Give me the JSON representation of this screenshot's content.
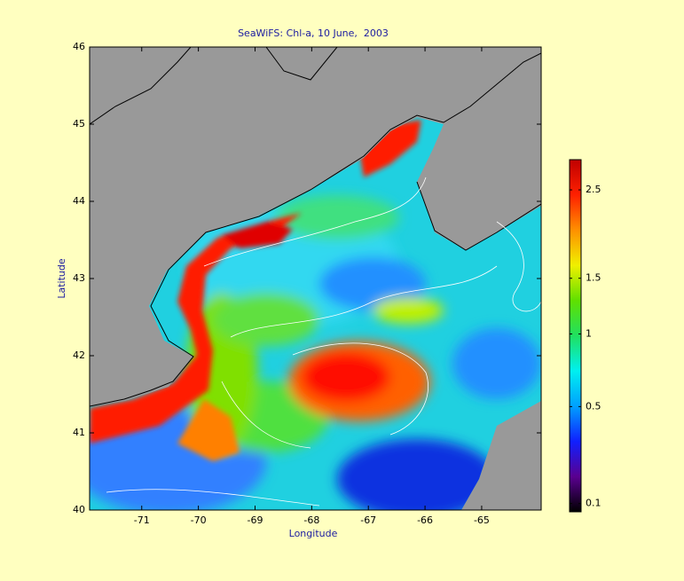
{
  "map": {
    "title": "SeaWiFS: Chl-a, 10 June,  2003",
    "x_label": "Longitude",
    "y_label": "Latitude",
    "xlim": [
      -71.92,
      -63.95
    ],
    "ylim": [
      40,
      46
    ],
    "xticks": [
      -71,
      -70,
      -69,
      -68,
      -67,
      -66,
      -65
    ],
    "yticks": [
      40,
      41,
      42,
      43,
      44,
      45,
      46
    ],
    "colorbar": {
      "scale": "sqrt",
      "lim": [
        0.08,
        2.9
      ],
      "ticks": [
        0.1,
        0.5,
        1,
        1.5,
        2.5
      ],
      "colors": [
        "#000000",
        "#5a0090",
        "#1020ff",
        "#00a0ff",
        "#00f0f0",
        "#20e060",
        "#60e000",
        "#f0f000",
        "#ff9000",
        "#ff2000",
        "#c00000"
      ]
    }
  }
}
